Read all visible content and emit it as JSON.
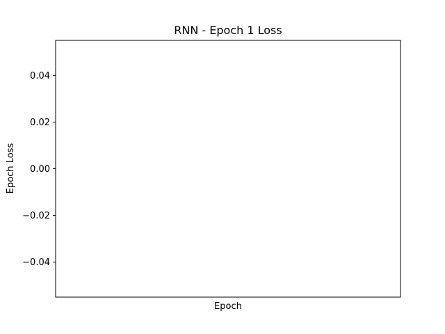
{
  "chart_data": {
    "type": "line",
    "title": "RNN - Epoch 1 Loss",
    "xlabel": "Epoch",
    "ylabel": "Epoch Loss",
    "x": [],
    "series": [
      {
        "values": []
      }
    ],
    "ylim": [
      -0.055,
      0.055
    ],
    "yticks": [
      0.04,
      0.02,
      0.0,
      -0.02,
      -0.04
    ],
    "ytick_labels": [
      "0.04",
      "0.02",
      "0.00",
      "−0.02",
      "−0.04"
    ],
    "xticks": [],
    "grid": false,
    "legend": "none"
  }
}
